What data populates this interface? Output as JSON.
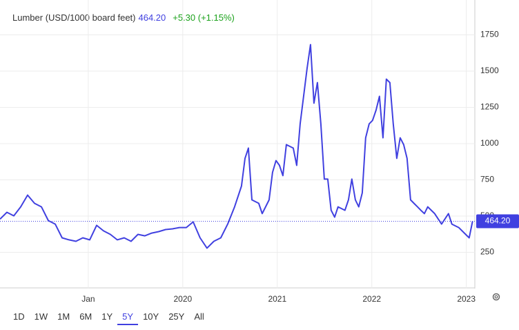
{
  "header": {
    "name": "Lumber (USD/1000 board feet)",
    "price": "464.20",
    "change": "+5.30 (+1.15%)"
  },
  "ranges": [
    "1D",
    "1W",
    "1M",
    "6M",
    "1Y",
    "5Y",
    "10Y",
    "25Y",
    "All"
  ],
  "active_range": 5,
  "chart_data": {
    "type": "line",
    "x": [
      2018.066,
      2018.139,
      2018.212,
      2018.285,
      2018.358,
      2018.431,
      2018.504,
      2018.577,
      2018.65,
      2018.723,
      2018.796,
      2018.869,
      2018.942,
      2019.015,
      2019.088,
      2019.161,
      2019.234,
      2019.307,
      2019.38,
      2019.453,
      2019.526,
      2019.599,
      2019.672,
      2019.745,
      2019.818,
      2019.891,
      2019.964,
      2020.037,
      2020.11,
      2020.183,
      2020.256,
      2020.329,
      2020.402,
      2020.475,
      2020.548,
      2020.621,
      2020.658,
      2020.694,
      2020.731,
      2020.804,
      2020.84,
      2020.913,
      2020.95,
      2020.986,
      2021.023,
      2021.059,
      2021.096,
      2021.169,
      2021.205,
      2021.242,
      2021.278,
      2021.315,
      2021.351,
      2021.388,
      2021.424,
      2021.461,
      2021.497,
      2021.534,
      2021.57,
      2021.607,
      2021.643,
      2021.716,
      2021.753,
      2021.789,
      2021.826,
      2021.862,
      2021.899,
      2021.935,
      2021.972,
      2022.008,
      2022.045,
      2022.081,
      2022.118,
      2022.154,
      2022.191,
      2022.227,
      2022.264,
      2022.3,
      2022.337,
      2022.373,
      2022.41,
      2022.446,
      2022.483,
      2022.519,
      2022.556,
      2022.592,
      2022.665,
      2022.738,
      2022.811,
      2022.847,
      2022.92,
      2022.993,
      2023.03,
      2023.066
    ],
    "series": [
      {
        "color": "#4040e0",
        "values": [
          479,
          526,
          502,
          564,
          645,
          588,
          564,
          469,
          445,
          350,
          336,
          326,
          350,
          336,
          436,
          398,
          374,
          336,
          350,
          326,
          374,
          364,
          383,
          393,
          407,
          412,
          421,
          421,
          460,
          350,
          279,
          326,
          350,
          445,
          564,
          707,
          898,
          969,
          612,
          588,
          517,
          612,
          802,
          883,
          850,
          779,
          993,
          969,
          850,
          1136,
          1326,
          1517,
          1683,
          1279,
          1421,
          1136,
          755,
          755,
          540,
          493,
          564,
          540,
          612,
          755,
          612,
          564,
          660,
          1040,
          1136,
          1160,
          1231,
          1326,
          1040,
          1445,
          1421,
          1136,
          898,
          1040,
          993,
          898,
          612,
          588,
          564,
          540,
          517,
          564,
          517,
          445,
          517,
          445,
          421,
          374,
          350,
          464.2
        ]
      }
    ],
    "xlim": [
      2018.066,
      2023.09
    ],
    "xticks": [
      {
        "value": 2019,
        "label": "Jan"
      },
      2020,
      2021,
      2022,
      2023
    ],
    "ylim": [
      0,
      1950
    ],
    "yticks": [
      250,
      500,
      750,
      1000,
      1250,
      1500,
      1750
    ],
    "grid": true
  }
}
